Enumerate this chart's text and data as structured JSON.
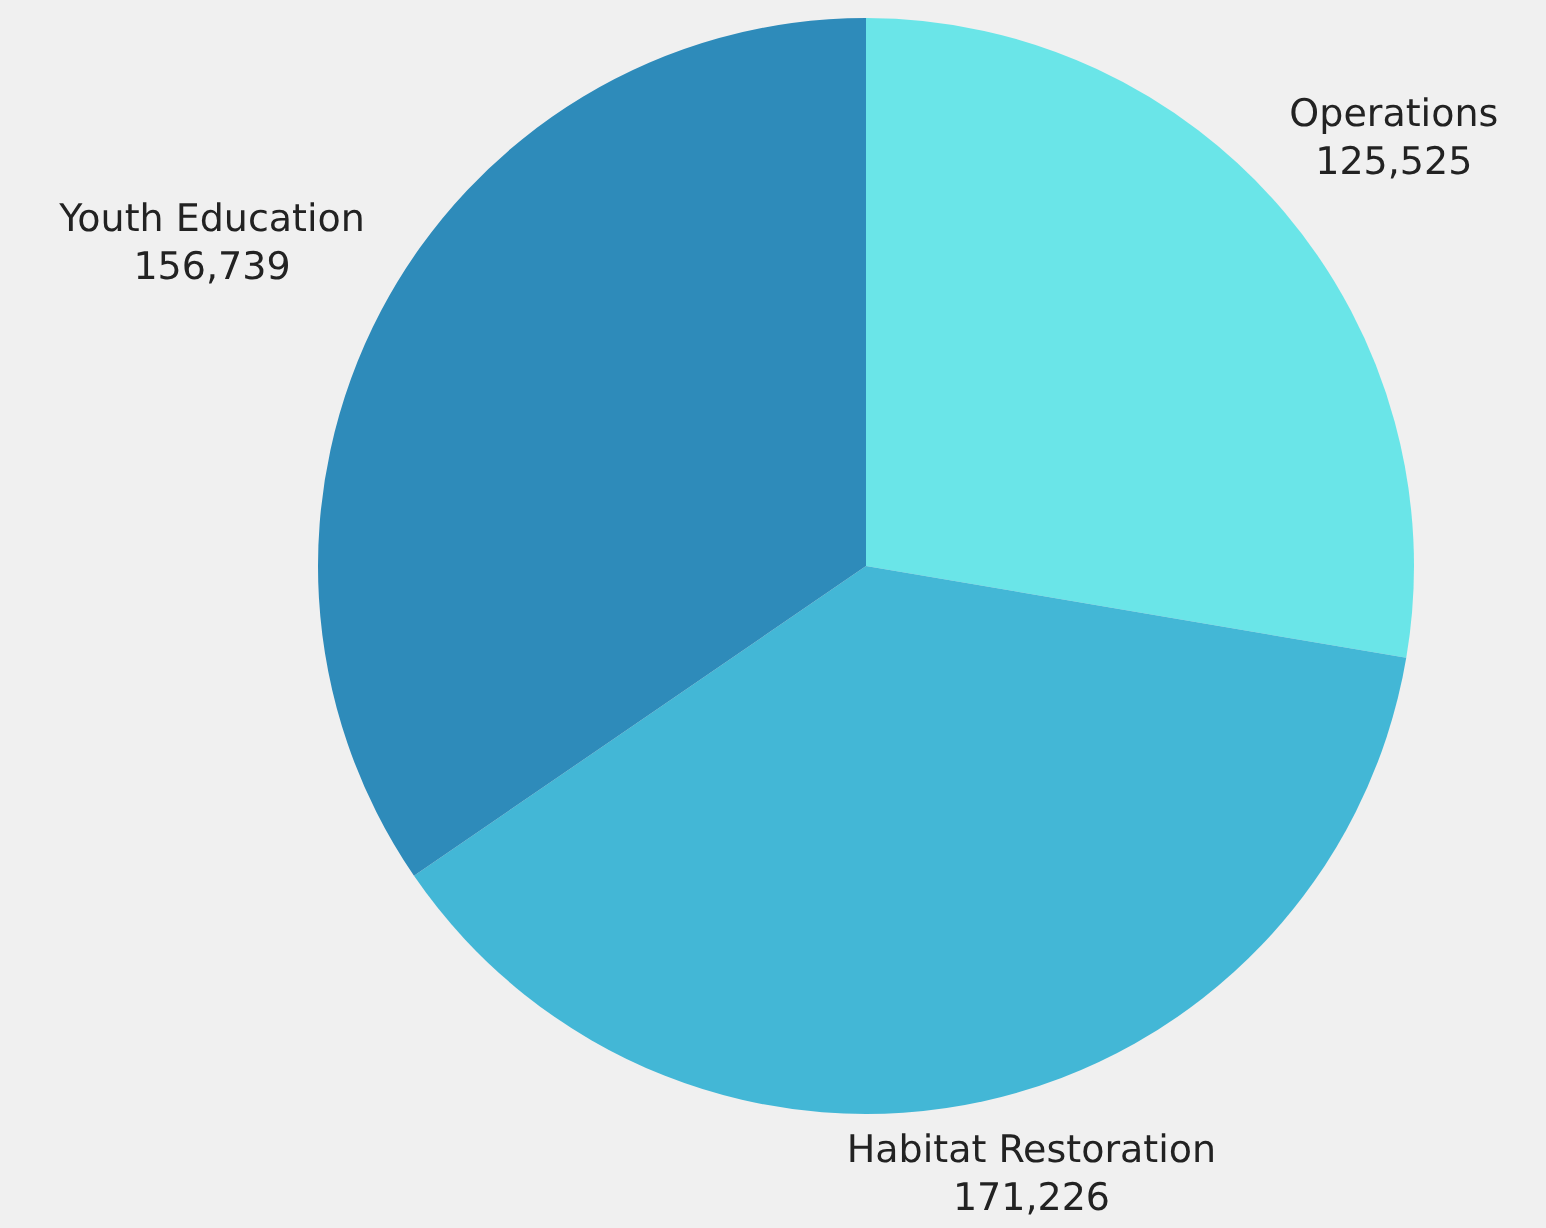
{
  "chart_data": {
    "type": "pie",
    "categories": [
      "Operations",
      "Habitat Restoration",
      "Youth Education"
    ],
    "values": [
      125525,
      171226,
      156739
    ],
    "value_labels": [
      "125,525",
      "171,226",
      "156,739"
    ],
    "colors": [
      "#6ae5e8",
      "#43b7d6",
      "#2e8bba"
    ],
    "legend": false
  }
}
